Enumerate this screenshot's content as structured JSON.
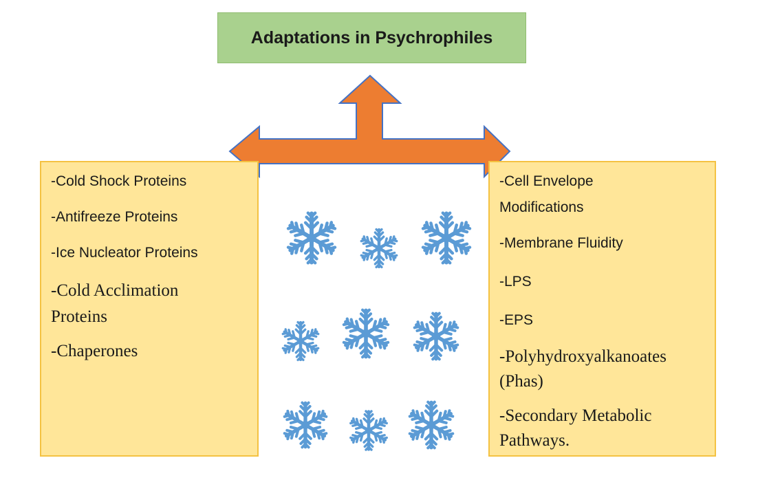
{
  "title": "Adaptations in Psychrophiles",
  "left_items": [
    "-Cold Shock Proteins",
    "-Antifreeze Proteins",
    "-Ice Nucleator Proteins",
    "-Cold Acclimation",
    "Proteins",
    "-Chaperones"
  ],
  "right_items": [
    "-Cell Envelope",
    "Modifications",
    "-Membrane Fluidity",
    "-LPS",
    "-EPS",
    "-Polyhydroxyalkanoates",
    "(Phas)",
    "-Secondary Metabolic",
    "Pathways."
  ],
  "colors": {
    "title_fill": "#a9d18e",
    "panel_fill": "#ffe699",
    "panel_border": "#f4c242",
    "arrow_fill": "#ed7d31",
    "arrow_stroke": "#4472c4",
    "snowflake": "#5b9bd5"
  },
  "icons": [
    "snowflake-icon"
  ]
}
